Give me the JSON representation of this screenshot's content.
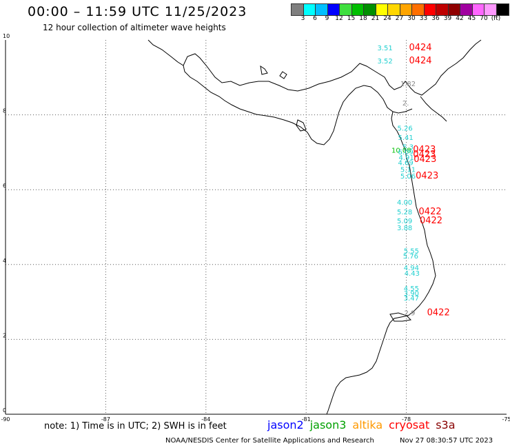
{
  "header": {
    "title": "00:00 – 11:59 UTC 11/25/2023",
    "subtitle": "12 hour collection of altimeter wave heights"
  },
  "colorbar": {
    "colors": [
      "#7f7f7f",
      "#00ffff",
      "#00bfff",
      "#0000ff",
      "#3fdf3f",
      "#00bf00",
      "#008f00",
      "#ffff00",
      "#ffd700",
      "#ffa500",
      "#ff6f00",
      "#ff0000",
      "#bf0000",
      "#8f0000",
      "#a000a0",
      "#ff66ff",
      "#ff99ff",
      "#000000"
    ],
    "labels": [
      "3",
      "6",
      "9",
      "12",
      "15",
      "18",
      "21",
      "24",
      "27",
      "30",
      "33",
      "36",
      "39",
      "42",
      "45",
      "70",
      "(ft)"
    ]
  },
  "axes": {
    "x_ticks": [
      "-90",
      "-87",
      "-84",
      "-81",
      "-78",
      "-75"
    ],
    "y_ticks": [
      "10",
      "8",
      "6",
      "4",
      "2",
      "0"
    ]
  },
  "observations": [
    {
      "text": "3.51",
      "lon": -78.64,
      "lat": 9.72,
      "color": "#20d0d0"
    },
    {
      "text": "3.52",
      "lon": -78.64,
      "lat": 9.37,
      "color": "#20d0d0"
    },
    {
      "text": "1.82",
      "lon": -77.95,
      "lat": 8.77,
      "color": "#888888"
    },
    {
      "text": "2.",
      "lon": -78.02,
      "lat": 8.25,
      "color": "#888888"
    },
    {
      "text": "5.26",
      "lon": -78.04,
      "lat": 7.58,
      "color": "#20d0d0"
    },
    {
      "text": "5.41",
      "lon": -78.02,
      "lat": 7.33,
      "color": "#20d0d0"
    },
    {
      "text": "5.3",
      "lon": -77.95,
      "lat": 7.08,
      "color": "#20d0d0"
    },
    {
      "text": "10.08",
      "lon": -78.15,
      "lat": 6.99,
      "color": "#00bf00"
    },
    {
      "text": "6.09",
      "lon": -78.02,
      "lat": 6.94,
      "color": "#20d0d0"
    },
    {
      "text": "4.91",
      "lon": -78.0,
      "lat": 6.8,
      "color": "#20d0d0"
    },
    {
      "text": "4.69",
      "lon": -78.02,
      "lat": 6.66,
      "color": "#20d0d0"
    },
    {
      "text": "5.11",
      "lon": -77.95,
      "lat": 6.47,
      "color": "#20d0d0"
    },
    {
      "text": "5.06",
      "lon": -77.95,
      "lat": 6.3,
      "color": "#20d0d0"
    },
    {
      "text": "4.00",
      "lon": -78.05,
      "lat": 5.6,
      "color": "#20d0d0"
    },
    {
      "text": "5.28",
      "lon": -78.05,
      "lat": 5.34,
      "color": "#20d0d0"
    },
    {
      "text": "5.09",
      "lon": -78.05,
      "lat": 5.1,
      "color": "#20d0d0"
    },
    {
      "text": "3.88",
      "lon": -78.05,
      "lat": 4.92,
      "color": "#20d0d0"
    },
    {
      "text": "5.55",
      "lon": -77.85,
      "lat": 4.3,
      "color": "#20d0d0"
    },
    {
      "text": "5.76",
      "lon": -77.87,
      "lat": 4.16,
      "color": "#20d0d0"
    },
    {
      "text": "4.94",
      "lon": -77.85,
      "lat": 3.85,
      "color": "#20d0d0"
    },
    {
      "text": "4.43",
      "lon": -77.83,
      "lat": 3.7,
      "color": "#20d0d0"
    },
    {
      "text": "4.55",
      "lon": -77.85,
      "lat": 3.3,
      "color": "#20d0d0"
    },
    {
      "text": "3.90",
      "lon": -77.85,
      "lat": 3.17,
      "color": "#20d0d0"
    },
    {
      "text": "3.47",
      "lon": -77.85,
      "lat": 3.04,
      "color": "#20d0d0"
    },
    {
      "text": "2.9",
      "lon": -77.9,
      "lat": 2.64,
      "color": "#888888"
    }
  ],
  "time_labels": [
    {
      "text": "0424",
      "lon": -77.92,
      "lat": 9.72
    },
    {
      "text": "0424",
      "lon": -77.92,
      "lat": 9.37
    },
    {
      "text": "0423",
      "lon": -77.8,
      "lat": 7.0
    },
    {
      "text": "0423",
      "lon": -77.8,
      "lat": 6.87
    },
    {
      "text": "0423",
      "lon": -77.78,
      "lat": 6.74
    },
    {
      "text": "0423",
      "lon": -77.72,
      "lat": 6.3
    },
    {
      "text": "0422",
      "lon": -77.63,
      "lat": 5.34
    },
    {
      "text": "0422",
      "lon": -77.6,
      "lat": 5.1
    },
    {
      "text": "0422",
      "lon": -77.38,
      "lat": 2.64
    }
  ],
  "footer": {
    "note": "note:  1) Time is in UTC;  2) SWH is in feet",
    "legend": [
      {
        "name": "jason2",
        "color": "#0000ff"
      },
      {
        "name": "jason3",
        "color": "#00a000"
      },
      {
        "name": "altika",
        "color": "#ff9900"
      },
      {
        "name": "cryosat",
        "color": "#ff0000"
      },
      {
        "name": "s3a",
        "color": "#880000"
      }
    ],
    "credit": "NOAA/NESDIS Center for Satellite Applications and Research",
    "timestamp": "Nov 27 08:30:57 UTC 2023"
  }
}
